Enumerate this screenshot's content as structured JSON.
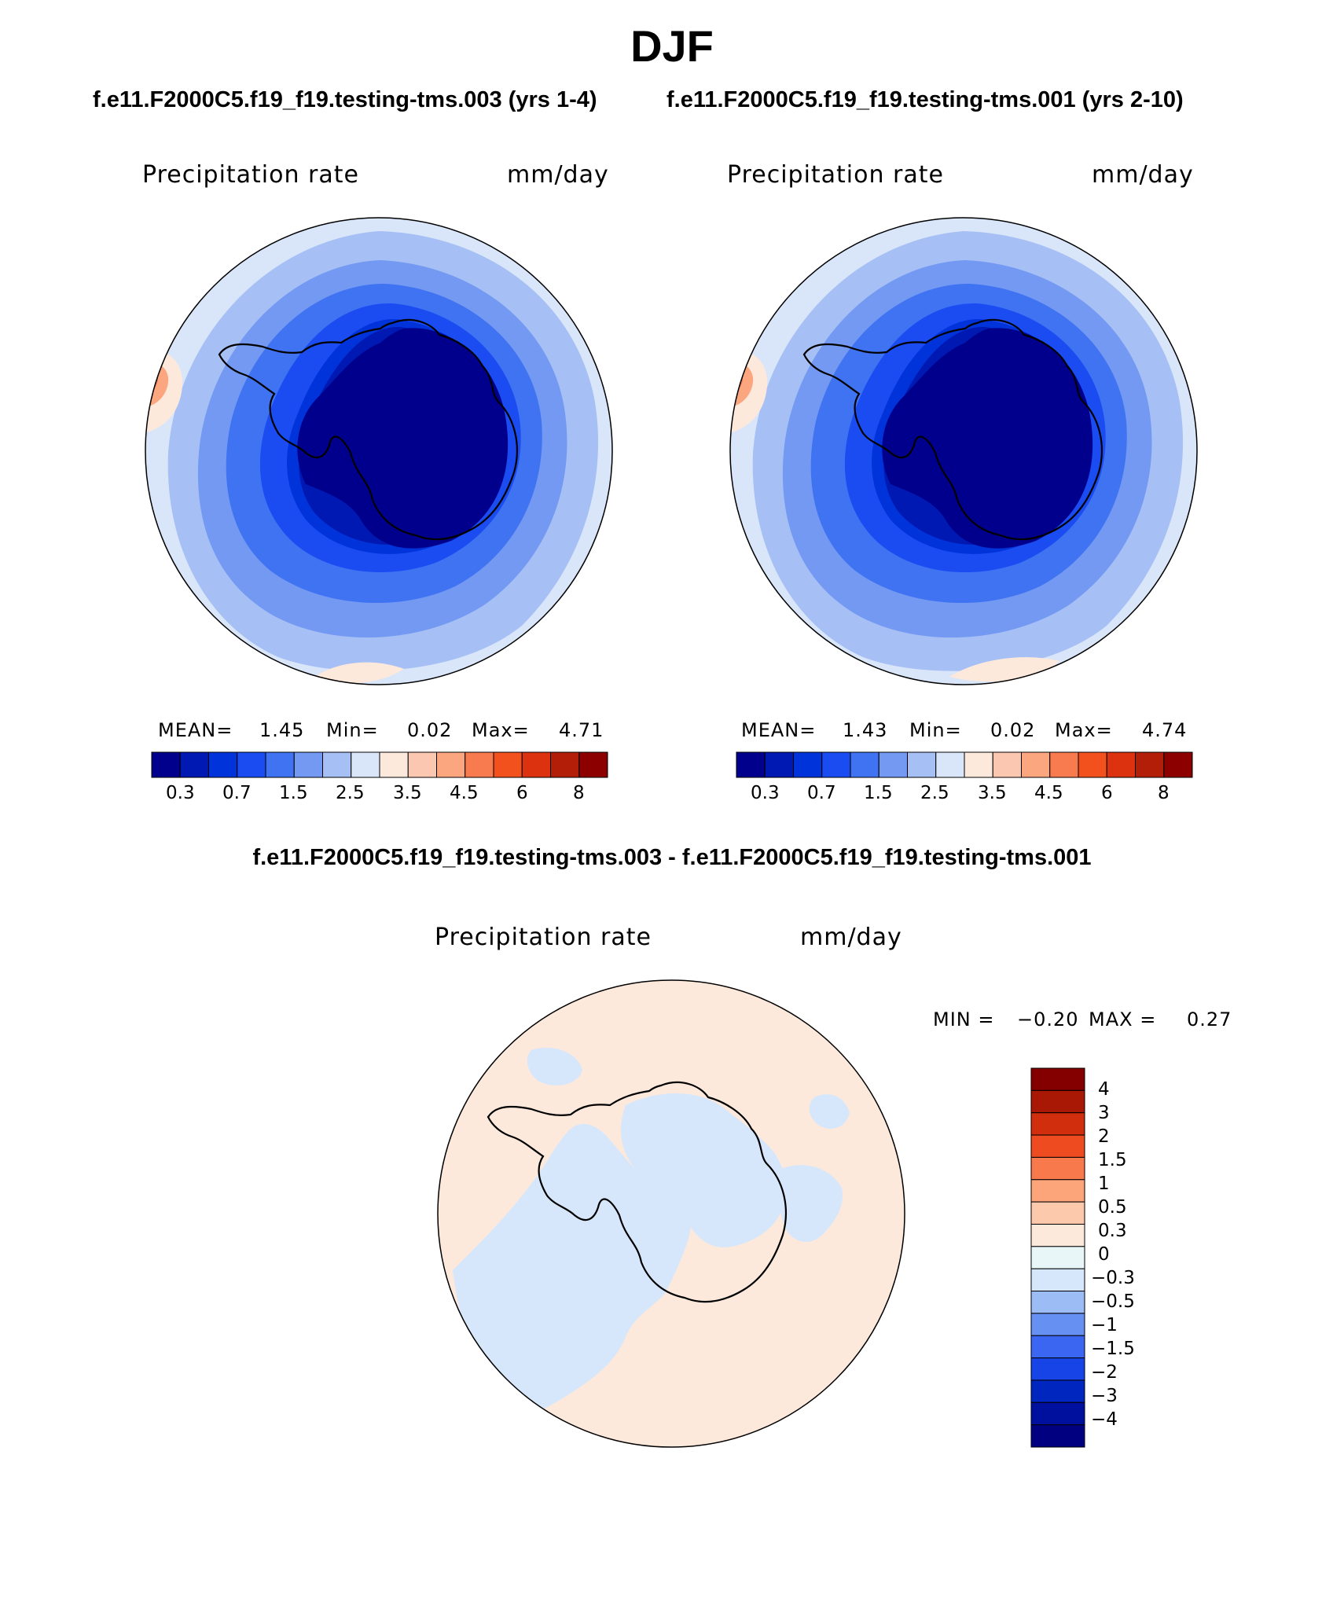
{
  "figure": {
    "title": "DJF",
    "diff_title": "f.e11.F2000C5.f19_f19.testing-tms.003 - f.e11.F2000C5.f19_f19.testing-tms.001"
  },
  "panels": [
    {
      "case_title": "f.e11.F2000C5.f19_f19.testing-tms.003 (yrs 1-4)",
      "variable": "Precipitation rate",
      "units": "mm/day",
      "mean_label": "MEAN=",
      "mean_value": "1.45",
      "min_label": "Min=",
      "min_value": "0.02",
      "max_label": "Max=",
      "max_value": "4.71"
    },
    {
      "case_title": "f.e11.F2000C5.f19_f19.testing-tms.001 (yrs 2-10)",
      "variable": "Precipitation rate",
      "units": "mm/day",
      "mean_label": "MEAN=",
      "mean_value": "1.43",
      "min_label": "Min=",
      "min_value": "0.02",
      "max_label": "Max=",
      "max_value": "4.74"
    }
  ],
  "diff_panel": {
    "variable": "Precipitation rate",
    "units": "mm/day",
    "min_label": "MIN =",
    "min_value": "−0.20",
    "max_label": "MAX =",
    "max_value": "0.27"
  },
  "colorbar_abs": {
    "colors": [
      "#00008c",
      "#0019b2",
      "#0033d9",
      "#1a4cf2",
      "#4073f2",
      "#7399f2",
      "#a6c0f5",
      "#d9e6fa",
      "#fde8dc",
      "#fcc7b0",
      "#fba67f",
      "#f87b4f",
      "#f2511e",
      "#dc3210",
      "#b21e08",
      "#8c0000"
    ],
    "tick_labels": [
      "0.3",
      "0.7",
      "1.5",
      "2.5",
      "3.5",
      "4.5",
      "6",
      "8"
    ]
  },
  "colorbar_diff": {
    "colors": [
      "#000080",
      "#00109e",
      "#0026c0",
      "#1744e6",
      "#3b66f2",
      "#6690f2",
      "#9cbcf5",
      "#d6e7fb",
      "#e8f6f8",
      "#fde9dc",
      "#fdc9ad",
      "#fca47a",
      "#f7794c",
      "#ee4c20",
      "#d02e0c",
      "#a81804",
      "#840000"
    ],
    "tick_labels": [
      "4",
      "3",
      "2",
      "1.5",
      "1",
      "0.5",
      "0.3",
      "0",
      "−0.3",
      "−0.5",
      "−1",
      "−1.5",
      "−2",
      "−3",
      "−4"
    ]
  },
  "map_colors": {
    "light_cream": "#fde9dc",
    "light_blue": "#d6e7fb"
  }
}
